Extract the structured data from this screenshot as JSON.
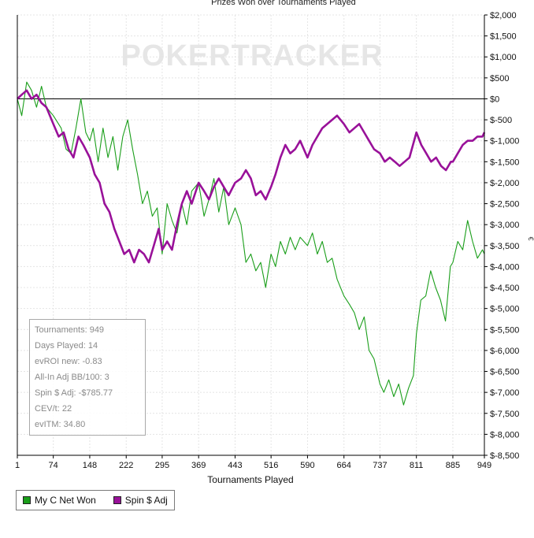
{
  "chart_data": {
    "type": "line",
    "title": "Prizes Won over Tournaments Played",
    "xlabel": "Tournaments Played",
    "ylabel": "",
    "xlim": [
      1,
      949
    ],
    "ylim": [
      -8500,
      2000
    ],
    "x_ticks": [
      1,
      74,
      148,
      222,
      295,
      369,
      443,
      516,
      590,
      664,
      737,
      811,
      885,
      949
    ],
    "y_ticks": [
      2000,
      1500,
      1000,
      500,
      0,
      -500,
      -1000,
      -1500,
      -2000,
      -2500,
      -3000,
      -3500,
      -4000,
      -4500,
      -5000,
      -5500,
      -6000,
      -6500,
      -7000,
      -7500,
      -8000,
      -8500
    ],
    "y_tick_labels": [
      "$2,000",
      "$1,500",
      "$1,000",
      "$500",
      "$0",
      "$-500",
      "$-1,000",
      "$-1,500",
      "$-2,000",
      "$-2,500",
      "$-3,000",
      "$-3,500",
      "$-4,000",
      "$-4,500",
      "$-5,000",
      "$-5,500",
      "$-6,000",
      "$-6,500",
      "$-7,000",
      "$-7,500",
      "$-8,000",
      "$-8,500"
    ],
    "grid": true,
    "legend_position": "bottom-left",
    "series": [
      {
        "name": "My C Net Won",
        "color": "#1a9e1a",
        "points": [
          [
            1,
            0
          ],
          [
            10,
            -400
          ],
          [
            20,
            400
          ],
          [
            30,
            200
          ],
          [
            40,
            -200
          ],
          [
            50,
            300
          ],
          [
            60,
            -200
          ],
          [
            74,
            -400
          ],
          [
            90,
            -700
          ],
          [
            100,
            -1200
          ],
          [
            110,
            -1300
          ],
          [
            120,
            -700
          ],
          [
            130,
            0
          ],
          [
            140,
            -800
          ],
          [
            148,
            -1000
          ],
          [
            155,
            -700
          ],
          [
            165,
            -1500
          ],
          [
            175,
            -700
          ],
          [
            185,
            -1400
          ],
          [
            195,
            -900
          ],
          [
            205,
            -1700
          ],
          [
            215,
            -900
          ],
          [
            225,
            -500
          ],
          [
            235,
            -1200
          ],
          [
            245,
            -1800
          ],
          [
            255,
            -2500
          ],
          [
            265,
            -2200
          ],
          [
            275,
            -2800
          ],
          [
            285,
            -2600
          ],
          [
            295,
            -3700
          ],
          [
            305,
            -2500
          ],
          [
            315,
            -2900
          ],
          [
            325,
            -3200
          ],
          [
            335,
            -2500
          ],
          [
            345,
            -3000
          ],
          [
            355,
            -2200
          ],
          [
            369,
            -2000
          ],
          [
            380,
            -2800
          ],
          [
            390,
            -2400
          ],
          [
            400,
            -1900
          ],
          [
            410,
            -2700
          ],
          [
            420,
            -2100
          ],
          [
            430,
            -3000
          ],
          [
            443,
            -2600
          ],
          [
            455,
            -3000
          ],
          [
            465,
            -3900
          ],
          [
            475,
            -3700
          ],
          [
            485,
            -4100
          ],
          [
            495,
            -3900
          ],
          [
            505,
            -4500
          ],
          [
            516,
            -3700
          ],
          [
            525,
            -4000
          ],
          [
            535,
            -3400
          ],
          [
            545,
            -3700
          ],
          [
            555,
            -3300
          ],
          [
            565,
            -3600
          ],
          [
            575,
            -3300
          ],
          [
            590,
            -3500
          ],
          [
            600,
            -3200
          ],
          [
            610,
            -3700
          ],
          [
            620,
            -3400
          ],
          [
            630,
            -3900
          ],
          [
            640,
            -3800
          ],
          [
            650,
            -4300
          ],
          [
            664,
            -4700
          ],
          [
            675,
            -4900
          ],
          [
            685,
            -5100
          ],
          [
            695,
            -5500
          ],
          [
            705,
            -5200
          ],
          [
            715,
            -6000
          ],
          [
            725,
            -6200
          ],
          [
            737,
            -6800
          ],
          [
            745,
            -7000
          ],
          [
            755,
            -6700
          ],
          [
            765,
            -7100
          ],
          [
            775,
            -6800
          ],
          [
            785,
            -7300
          ],
          [
            795,
            -6900
          ],
          [
            805,
            -6600
          ],
          [
            811,
            -5600
          ],
          [
            820,
            -4800
          ],
          [
            830,
            -4700
          ],
          [
            840,
            -4100
          ],
          [
            850,
            -4500
          ],
          [
            860,
            -4800
          ],
          [
            870,
            -5300
          ],
          [
            880,
            -4000
          ],
          [
            885,
            -3900
          ],
          [
            895,
            -3400
          ],
          [
            905,
            -3600
          ],
          [
            915,
            -2900
          ],
          [
            925,
            -3400
          ],
          [
            935,
            -3800
          ],
          [
            945,
            -3600
          ],
          [
            949,
            -3700
          ]
        ]
      },
      {
        "name": "Spin $ Adj",
        "color": "#991199",
        "points": [
          [
            1,
            0
          ],
          [
            10,
            100
          ],
          [
            20,
            200
          ],
          [
            30,
            0
          ],
          [
            40,
            100
          ],
          [
            50,
            -100
          ],
          [
            60,
            -200
          ],
          [
            74,
            -600
          ],
          [
            85,
            -900
          ],
          [
            95,
            -800
          ],
          [
            105,
            -1200
          ],
          [
            115,
            -1400
          ],
          [
            125,
            -900
          ],
          [
            135,
            -1100
          ],
          [
            148,
            -1400
          ],
          [
            158,
            -1800
          ],
          [
            168,
            -2000
          ],
          [
            178,
            -2500
          ],
          [
            188,
            -2700
          ],
          [
            198,
            -3100
          ],
          [
            208,
            -3400
          ],
          [
            218,
            -3700
          ],
          [
            228,
            -3600
          ],
          [
            238,
            -3900
          ],
          [
            248,
            -3600
          ],
          [
            258,
            -3700
          ],
          [
            268,
            -3900
          ],
          [
            278,
            -3500
          ],
          [
            288,
            -3100
          ],
          [
            295,
            -3600
          ],
          [
            305,
            -3400
          ],
          [
            315,
            -3600
          ],
          [
            325,
            -3000
          ],
          [
            335,
            -2500
          ],
          [
            345,
            -2200
          ],
          [
            355,
            -2500
          ],
          [
            369,
            -2000
          ],
          [
            380,
            -2200
          ],
          [
            390,
            -2400
          ],
          [
            400,
            -2100
          ],
          [
            410,
            -1900
          ],
          [
            420,
            -2100
          ],
          [
            430,
            -2300
          ],
          [
            443,
            -2000
          ],
          [
            455,
            -1900
          ],
          [
            465,
            -1700
          ],
          [
            475,
            -1900
          ],
          [
            485,
            -2300
          ],
          [
            495,
            -2200
          ],
          [
            505,
            -2400
          ],
          [
            516,
            -2100
          ],
          [
            525,
            -1800
          ],
          [
            535,
            -1400
          ],
          [
            545,
            -1100
          ],
          [
            555,
            -1300
          ],
          [
            565,
            -1200
          ],
          [
            575,
            -1000
          ],
          [
            590,
            -1400
          ],
          [
            600,
            -1100
          ],
          [
            610,
            -900
          ],
          [
            620,
            -700
          ],
          [
            630,
            -600
          ],
          [
            640,
            -500
          ],
          [
            650,
            -400
          ],
          [
            664,
            -600
          ],
          [
            675,
            -800
          ],
          [
            685,
            -700
          ],
          [
            695,
            -600
          ],
          [
            705,
            -800
          ],
          [
            715,
            -1000
          ],
          [
            725,
            -1200
          ],
          [
            737,
            -1300
          ],
          [
            747,
            -1500
          ],
          [
            757,
            -1400
          ],
          [
            767,
            -1500
          ],
          [
            777,
            -1600
          ],
          [
            787,
            -1500
          ],
          [
            797,
            -1400
          ],
          [
            811,
            -800
          ],
          [
            821,
            -1100
          ],
          [
            831,
            -1300
          ],
          [
            841,
            -1500
          ],
          [
            851,
            -1400
          ],
          [
            861,
            -1600
          ],
          [
            871,
            -1700
          ],
          [
            881,
            -1500
          ],
          [
            885,
            -1500
          ],
          [
            895,
            -1300
          ],
          [
            905,
            -1100
          ],
          [
            915,
            -1000
          ],
          [
            925,
            -1000
          ],
          [
            935,
            -900
          ],
          [
            945,
            -900
          ],
          [
            949,
            -800
          ]
        ]
      }
    ],
    "watermark": "POKERTRACKER"
  },
  "stats": [
    "Tournaments: 949",
    "Days Played: 14",
    "evROI new: -0.83",
    "All-In Adj BB/100: 3",
    "Spin $ Adj: -$785.77",
    "CEV/t: 22",
    "evITM: 34.80"
  ],
  "legend": {
    "items": [
      {
        "label": "My C Net Won",
        "color": "#1a9e1a"
      },
      {
        "label": "Spin $ Adj",
        "color": "#991199"
      }
    ]
  },
  "side_glyph": "€"
}
